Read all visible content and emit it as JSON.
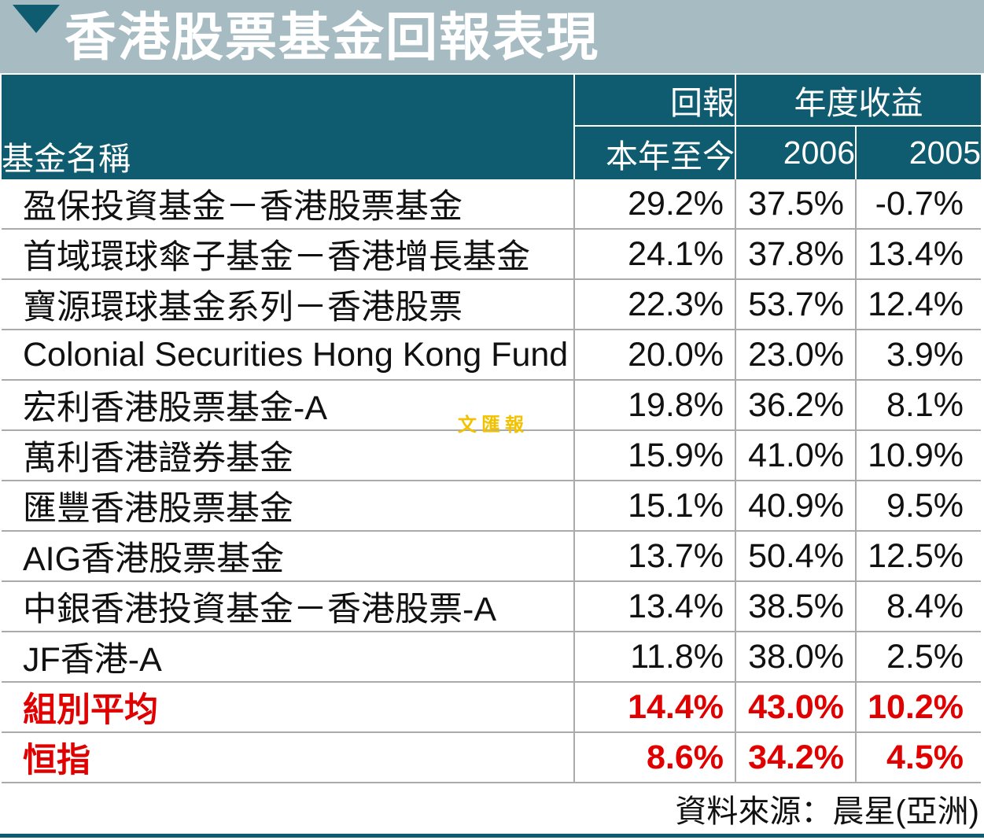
{
  "chart_data": {
    "type": "table",
    "title": "香港股票基金回報表現",
    "columns": {
      "name": "基金名稱",
      "return_group": "回報",
      "annual_group": "年度收益",
      "ytd": "本年至今",
      "y2006": "2006",
      "y2005": "2005"
    },
    "rows": [
      {
        "name": "盈保投資基金－香港股票基金",
        "ytd": "29.2%",
        "y2006": "37.5%",
        "y2005": "-0.7%"
      },
      {
        "name": "首域環球傘子基金－香港增長基金",
        "ytd": "24.1%",
        "y2006": "37.8%",
        "y2005": "13.4%"
      },
      {
        "name": "寶源環球基金系列－香港股票",
        "ytd": "22.3%",
        "y2006": "53.7%",
        "y2005": "12.4%"
      },
      {
        "name": "Colonial Securities Hong Kong Fund",
        "ytd": "20.0%",
        "y2006": "23.0%",
        "y2005": "3.9%"
      },
      {
        "name": "宏利香港股票基金-A",
        "ytd": "19.8%",
        "y2006": "36.2%",
        "y2005": "8.1%"
      },
      {
        "name": "萬利香港證券基金",
        "ytd": "15.9%",
        "y2006": "41.0%",
        "y2005": "10.9%"
      },
      {
        "name": "匯豐香港股票基金",
        "ytd": "15.1%",
        "y2006": "40.9%",
        "y2005": "9.5%"
      },
      {
        "name": "AIG香港股票基金",
        "ytd": "13.7%",
        "y2006": "50.4%",
        "y2005": "12.5%"
      },
      {
        "name": "中銀香港投資基金－香港股票-A",
        "ytd": "13.4%",
        "y2006": "38.5%",
        "y2005": "8.4%"
      },
      {
        "name": "JF香港-A",
        "ytd": "11.8%",
        "y2006": "38.0%",
        "y2005": "2.5%"
      }
    ],
    "summary_rows": [
      {
        "name": "組別平均",
        "ytd": "14.4%",
        "y2006": "43.0%",
        "y2005": "10.2%"
      },
      {
        "name": "恒指",
        "ytd": "8.6%",
        "y2006": "34.2%",
        "y2005": "4.5%"
      }
    ],
    "source": "資料來源：晨星(亞洲)",
    "watermark": "文匯報",
    "colors": {
      "header_bg": "#0f5c71",
      "banner_bg": "#a7bcc2",
      "summary_text": "#e00000",
      "watermark": "#f2c200"
    }
  }
}
